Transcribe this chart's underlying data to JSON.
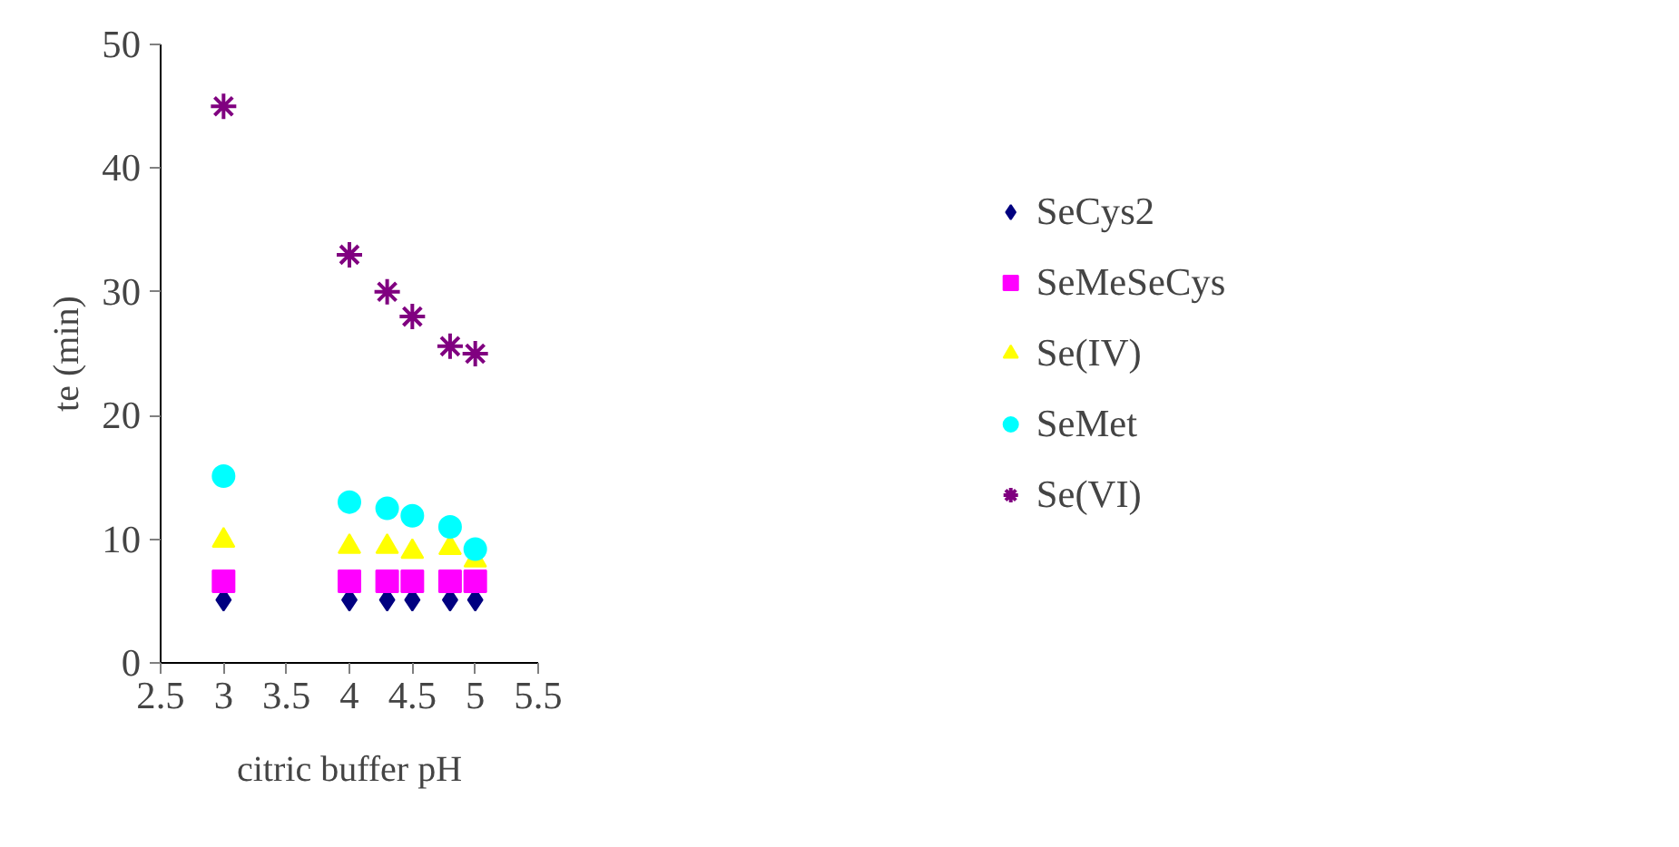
{
  "chart_data": {
    "type": "scatter",
    "xlabel": "citric buffer pH",
    "ylabel": "te (min)",
    "x": [
      3,
      4,
      4.3,
      4.5,
      4.8,
      5
    ],
    "xlim": [
      2.5,
      5.5
    ],
    "xticks": [
      2.5,
      3,
      3.5,
      4,
      4.5,
      5,
      5.5
    ],
    "ylim": [
      0,
      50
    ],
    "yticks": [
      0,
      10,
      20,
      30,
      40,
      50
    ],
    "grid": false,
    "legend": "right",
    "series": [
      {
        "name": "SeCys2",
        "color": "#000080",
        "marker": "diamond",
        "values": [
          5.1,
          5.1,
          5.1,
          5.1,
          5.1,
          5.1
        ]
      },
      {
        "name": "SeMeSeCys",
        "color": "#ff00ff",
        "marker": "square",
        "values": [
          6.6,
          6.6,
          6.6,
          6.6,
          6.6,
          6.6
        ]
      },
      {
        "name": "Se(IV)",
        "color": "#ffff00",
        "marker": "triangle",
        "values": [
          9.9,
          9.4,
          9.4,
          9.0,
          9.3,
          8.3
        ]
      },
      {
        "name": "SeMet",
        "color": "#00ffff",
        "marker": "circle",
        "values": [
          15.1,
          13.0,
          12.5,
          11.9,
          11.0,
          9.2
        ]
      },
      {
        "name": "Se(VI)",
        "color": "#800080",
        "marker": "cross",
        "values": [
          45,
          33,
          30,
          28,
          25.6,
          25
        ]
      }
    ]
  }
}
